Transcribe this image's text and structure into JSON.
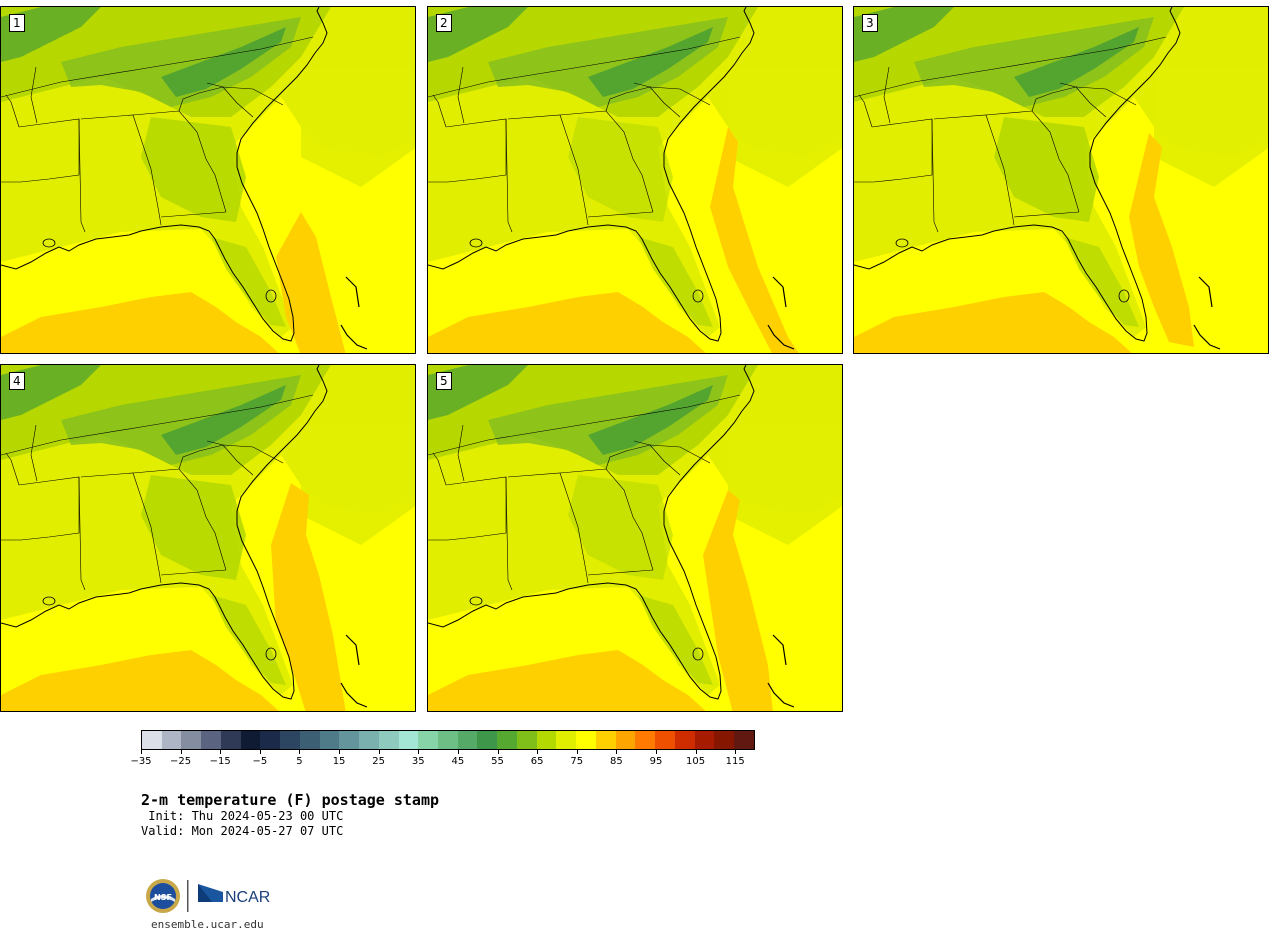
{
  "panels": [
    {
      "label": "1"
    },
    {
      "label": "2"
    },
    {
      "label": "3"
    },
    {
      "label": "4"
    },
    {
      "label": "5"
    }
  ],
  "colorbar": {
    "colors": [
      "#dbe0e8",
      "#aeb5c4",
      "#858da1",
      "#5a6480",
      "#2f3a57",
      "#0f1a33",
      "#1a2a48",
      "#2c4560",
      "#3d5f74",
      "#4f7a88",
      "#64959c",
      "#7ab0ae",
      "#8ecabe",
      "#a3e6d6",
      "#86d4a8",
      "#6dbf85",
      "#56aa68",
      "#3d964a",
      "#55a830",
      "#80bf1a",
      "#b3d900",
      "#e0ef00",
      "#ffff00",
      "#ffd000",
      "#ffa500",
      "#ff7a00",
      "#ef5000",
      "#cf2c00",
      "#a71c00",
      "#861600",
      "#611810"
    ],
    "tick_labels": [
      "−35",
      "−25",
      "−15",
      "−5",
      "5",
      "15",
      "25",
      "35",
      "45",
      "55",
      "65",
      "75",
      "85",
      "95",
      "105",
      "115"
    ]
  },
  "title": "2-m temperature (F) postage stamp",
  "init": " Init: Thu 2024-05-23 00 UTC",
  "valid": "Valid: Mon 2024-05-27 07 UTC",
  "logo": {
    "nsf": "NSF",
    "ncar": "NCAR"
  },
  "site": "ensemble.ucar.edu",
  "colors": {
    "dark_green": "#4aa035",
    "mid_green": "#87c01f",
    "light_green": "#b6d800",
    "yellow_green": "#e2ee00",
    "yellow": "#ffff00",
    "orange_yellow": "#ffd000"
  }
}
